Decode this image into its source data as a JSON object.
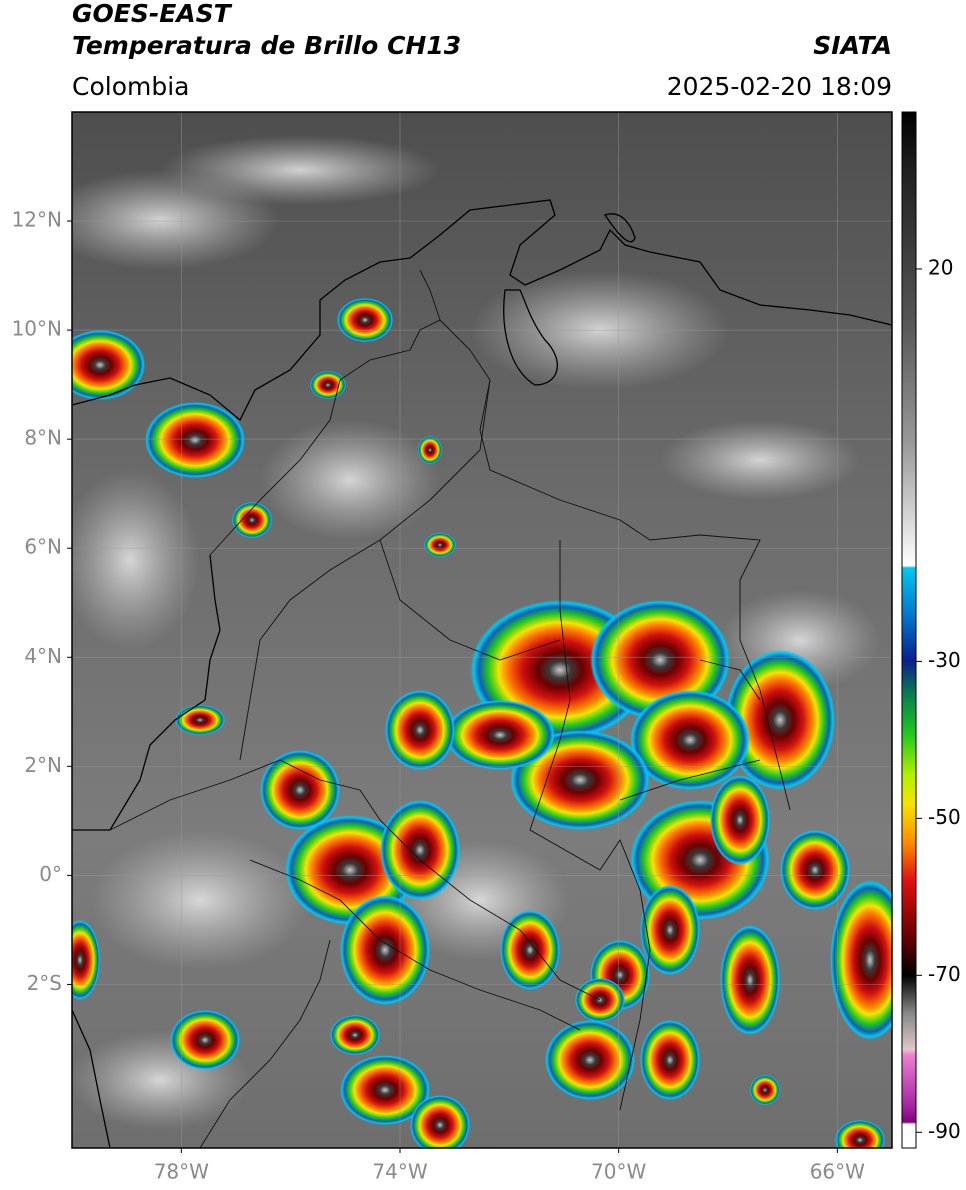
{
  "header": {
    "title": "GOES-EAST",
    "subtitle": "Temperatura de Brillo CH13",
    "source": "SIATA",
    "region": "Colombia",
    "datetime": "2025-02-20 18:09"
  },
  "map": {
    "lonlim": [
      -80,
      -65
    ],
    "latlim": [
      -5,
      14
    ],
    "lat_ticks": [
      {
        "value": 12,
        "label": "12°N"
      },
      {
        "value": 10,
        "label": "10°N"
      },
      {
        "value": 8,
        "label": "8°N"
      },
      {
        "value": 6,
        "label": "6°N"
      },
      {
        "value": 4,
        "label": "4°N"
      },
      {
        "value": 2,
        "label": "2°N"
      },
      {
        "value": 0,
        "label": "0°"
      },
      {
        "value": -2,
        "label": "2°S"
      }
    ],
    "lon_ticks": [
      {
        "value": -78,
        "label": "78°W"
      },
      {
        "value": -74,
        "label": "74°W"
      },
      {
        "value": -70,
        "label": "70°W"
      },
      {
        "value": -66,
        "label": "66°W"
      }
    ],
    "grid": true
  },
  "colorbar": {
    "lim": [
      -92,
      40
    ],
    "ticks": [
      20,
      -30,
      -50,
      -70,
      -90
    ]
  }
}
